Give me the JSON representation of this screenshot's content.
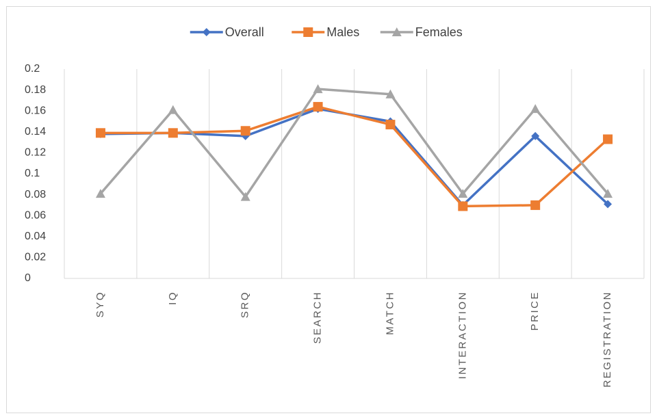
{
  "chart_data": {
    "type": "line",
    "categories": [
      "SYQ",
      "IQ",
      "SRQ",
      "SEARCH",
      "MATCH",
      "INTERACTION",
      "PRICE",
      "REGISTRATION"
    ],
    "series": [
      {
        "name": "Overall",
        "color": "#4472c4",
        "marker": "diamond",
        "values": [
          0.138,
          0.139,
          0.136,
          0.162,
          0.15,
          0.07,
          0.136,
          0.071
        ]
      },
      {
        "name": "Males",
        "color": "#ed7d31",
        "marker": "square",
        "values": [
          0.139,
          0.139,
          0.141,
          0.164,
          0.147,
          0.069,
          0.07,
          0.133
        ]
      },
      {
        "name": "Females",
        "color": "#a5a5a5",
        "marker": "triangle",
        "values": [
          0.081,
          0.161,
          0.078,
          0.181,
          0.176,
          0.081,
          0.162,
          0.081
        ]
      }
    ],
    "ylim": [
      0,
      0.2
    ],
    "yticks": [
      0,
      0.02,
      0.04,
      0.06,
      0.08,
      0.1,
      0.12,
      0.14,
      0.16,
      0.18,
      0.2
    ],
    "grid": "vertical",
    "legend": "top"
  }
}
